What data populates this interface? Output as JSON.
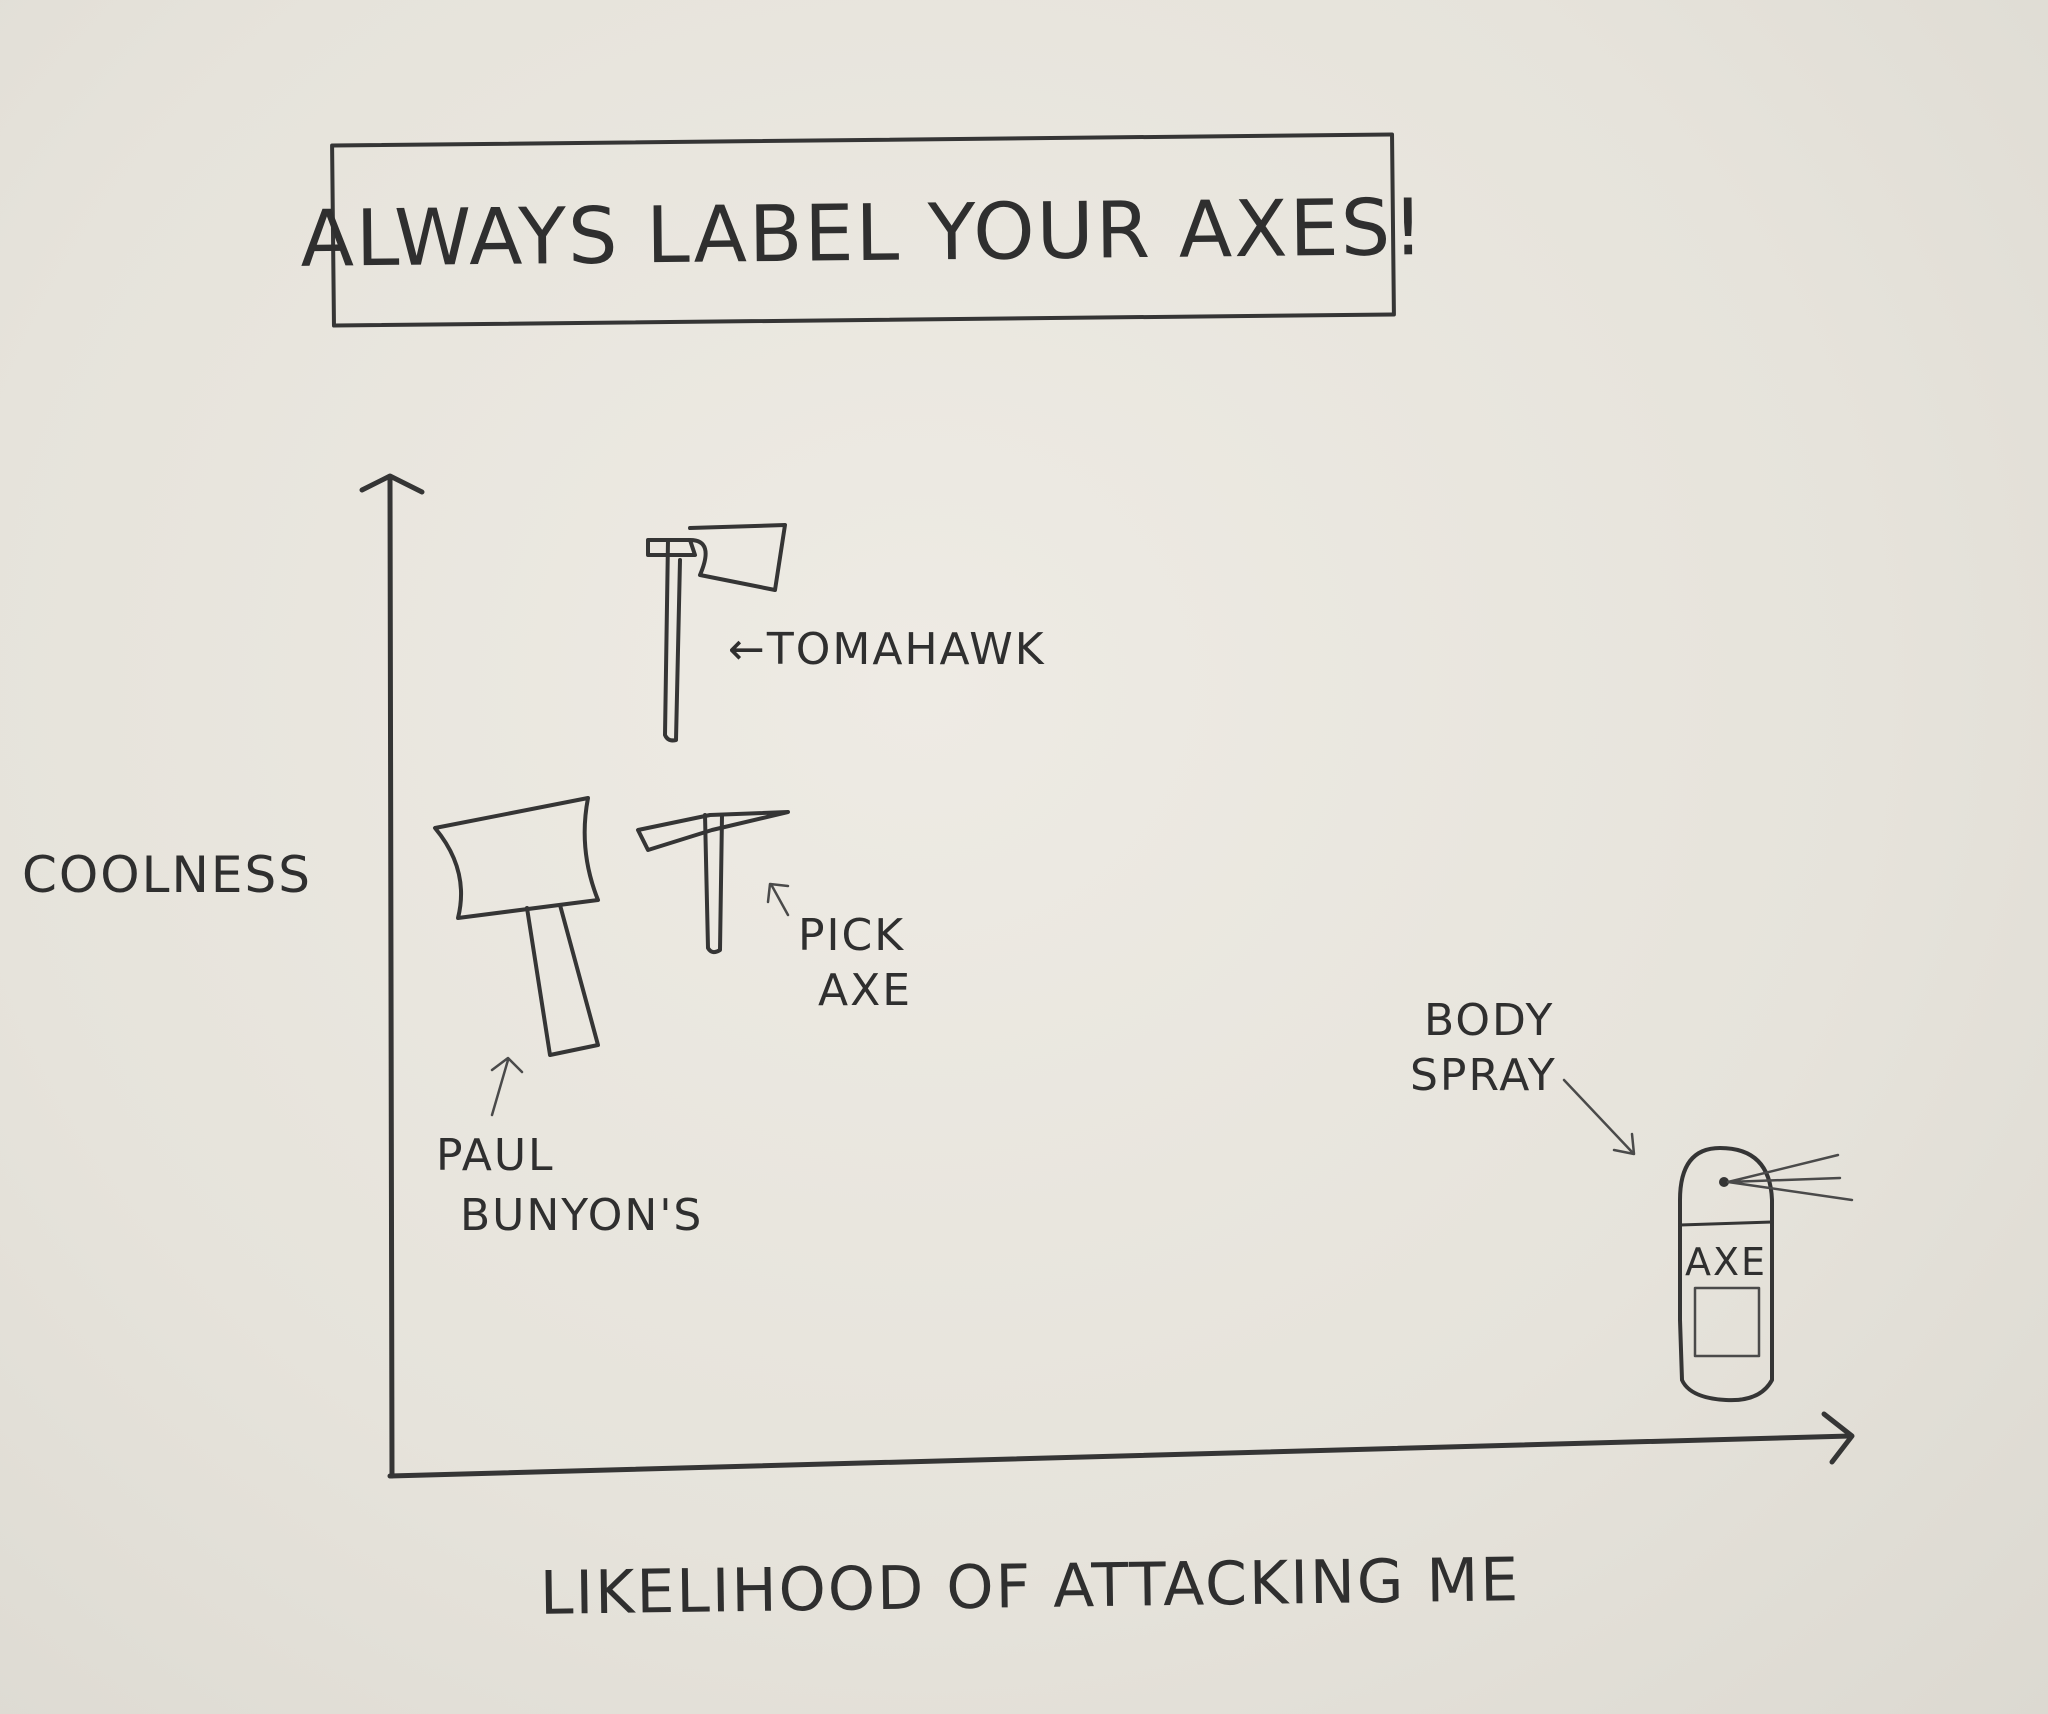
{
  "chart_data": {
    "type": "scatter",
    "title": "ALWAYS LABEL YOUR AXES!",
    "xlabel": "LIKELIHOOD OF ATTACKING ME",
    "ylabel": "COOLNESS",
    "xlim": [
      0,
      10
    ],
    "ylim": [
      0,
      10
    ],
    "grid": false,
    "points": [
      {
        "label": "←TOMAHAWK",
        "x": 2.0,
        "y": 7.5,
        "icon": "tomahawk-icon"
      },
      {
        "label": "PAUL BUNYON'S",
        "x": 1.0,
        "y": 4.5,
        "icon": "big-axe-icon"
      },
      {
        "label": "PICK AXE",
        "x": 2.2,
        "y": 5.3,
        "icon": "pick-axe-icon"
      },
      {
        "label": "BODY SPRAY",
        "x": 9.1,
        "y": 0.7,
        "icon": "spray-can-icon",
        "can_text": "AXE"
      }
    ]
  }
}
